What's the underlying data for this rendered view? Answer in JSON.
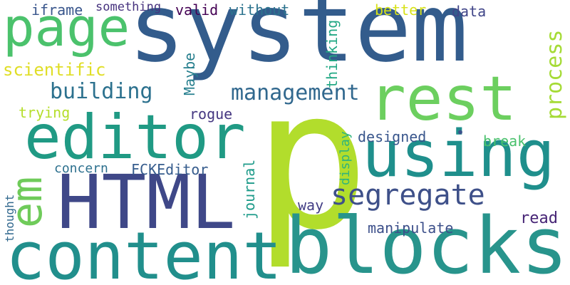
{
  "word_cloud": {
    "words": [
      {
        "text": "system",
        "color": "#335c8c"
      },
      {
        "text": "p",
        "color": "#b2dd2c"
      },
      {
        "text": "blocks",
        "color": "#28948c"
      },
      {
        "text": "content",
        "color": "#218f8c"
      },
      {
        "text": "HTML",
        "color": "#3f4888"
      },
      {
        "text": "editor",
        "color": "#209a84"
      },
      {
        "text": "using",
        "color": "#1f8f8c"
      },
      {
        "text": "rest",
        "color": "#6ccf5f"
      },
      {
        "text": "page",
        "color": "#4bc26c"
      },
      {
        "text": "segregate",
        "color": "#3e5089"
      },
      {
        "text": "management",
        "color": "#31688e"
      },
      {
        "text": "building",
        "color": "#2c718e"
      },
      {
        "text": "scientific",
        "color": "#e0de26"
      },
      {
        "text": "em",
        "color": "#6fcb5a"
      },
      {
        "text": "process",
        "color": "#a5db36"
      },
      {
        "text": "manipulate",
        "color": "#3c4f8a"
      },
      {
        "text": "read",
        "color": "#472576"
      },
      {
        "text": "iframe",
        "color": "#39568c"
      },
      {
        "text": "something",
        "color": "#46327e"
      },
      {
        "text": "valid",
        "color": "#440154"
      },
      {
        "text": "without",
        "color": "#2c738e"
      },
      {
        "text": "better",
        "color": "#d8e219"
      },
      {
        "text": "data",
        "color": "#404588"
      },
      {
        "text": "Maybe",
        "color": "#277f8e"
      },
      {
        "text": "thinking",
        "color": "#22a884"
      },
      {
        "text": "trying",
        "color": "#b5de2b"
      },
      {
        "text": "rogue",
        "color": "#453781"
      },
      {
        "text": "designed",
        "color": "#39568c"
      },
      {
        "text": "•",
        "color": "#3b528b"
      },
      {
        "text": "break",
        "color": "#4ac16d"
      },
      {
        "text": "journal",
        "color": "#1e9b8a"
      },
      {
        "text": "display",
        "color": "#2fb47c"
      },
      {
        "text": "concern",
        "color": "#2d708e"
      },
      {
        "text": "FCKEditor",
        "color": "#365c8d"
      },
      {
        "text": "way",
        "color": "#433e85"
      },
      {
        "text": "thought",
        "color": "#31688e"
      }
    ]
  }
}
